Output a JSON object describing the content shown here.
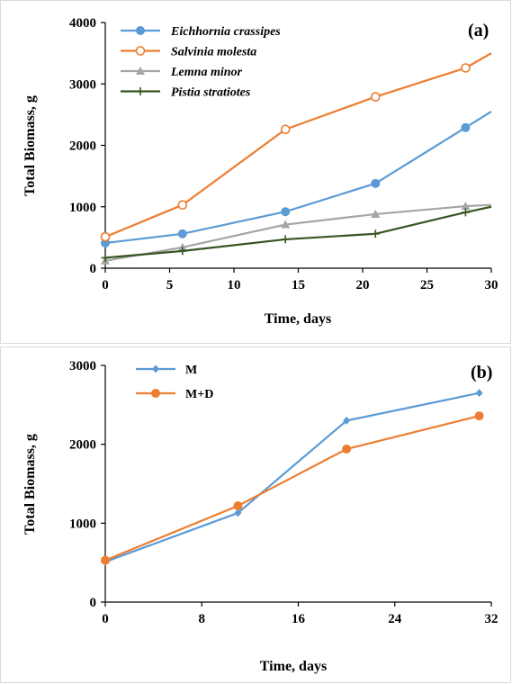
{
  "chart_data": [
    {
      "type": "line",
      "panel_label": "(a)",
      "xlabel": "Time, days",
      "ylabel": "Total Biomass, g",
      "xlim": [
        0,
        30
      ],
      "ylim": [
        0,
        4000
      ],
      "xticks": [
        "0",
        "5",
        "10",
        "15",
        "20",
        "25",
        "30"
      ],
      "yticks": [
        "0",
        "1000",
        "2000",
        "3000",
        "4000"
      ],
      "grid": false,
      "legend_position": "top-left",
      "series": [
        {
          "name": "Eichhornia crassipes",
          "color": "#5b9bd5",
          "marker": "filled-circle",
          "x": [
            0,
            6,
            14,
            21,
            28,
            30
          ],
          "y": [
            410,
            560,
            920,
            1380,
            2290,
            2550
          ]
        },
        {
          "name": "Salvinia molesta",
          "color": "#ed7d31",
          "marker": "open-circle",
          "x": [
            0,
            6,
            14,
            21,
            28,
            30
          ],
          "y": [
            510,
            1030,
            2260,
            2790,
            3260,
            3500
          ]
        },
        {
          "name": "Lemna minor",
          "color": "#a5a5a5",
          "marker": "triangle",
          "x": [
            0,
            6,
            14,
            21,
            28,
            30
          ],
          "y": [
            120,
            340,
            710,
            880,
            1010,
            1030
          ]
        },
        {
          "name": "Pistia stratiotes",
          "color": "#375623",
          "marker": "plus",
          "x": [
            0,
            6,
            14,
            21,
            28,
            30
          ],
          "y": [
            170,
            280,
            470,
            560,
            910,
            1000
          ]
        }
      ]
    },
    {
      "type": "line",
      "panel_label": "(b)",
      "xlabel": "Time, days",
      "ylabel": "Total Biomass, g",
      "xlim": [
        0,
        32
      ],
      "ylim": [
        0,
        3000
      ],
      "xticks": [
        "0",
        "8",
        "16",
        "24",
        "32"
      ],
      "yticks": [
        "0",
        "1000",
        "2000",
        "3000"
      ],
      "grid": false,
      "legend_position": "top-left",
      "series": [
        {
          "name": "M",
          "color": "#5b9bd5",
          "marker": "diamond",
          "x": [
            0,
            11,
            20,
            31
          ],
          "y": [
            510,
            1130,
            2300,
            2650
          ]
        },
        {
          "name": "M+D",
          "color": "#ed7d31",
          "marker": "filled-circle",
          "x": [
            0,
            11,
            20,
            31
          ],
          "y": [
            530,
            1220,
            1940,
            2360
          ]
        }
      ]
    }
  ]
}
